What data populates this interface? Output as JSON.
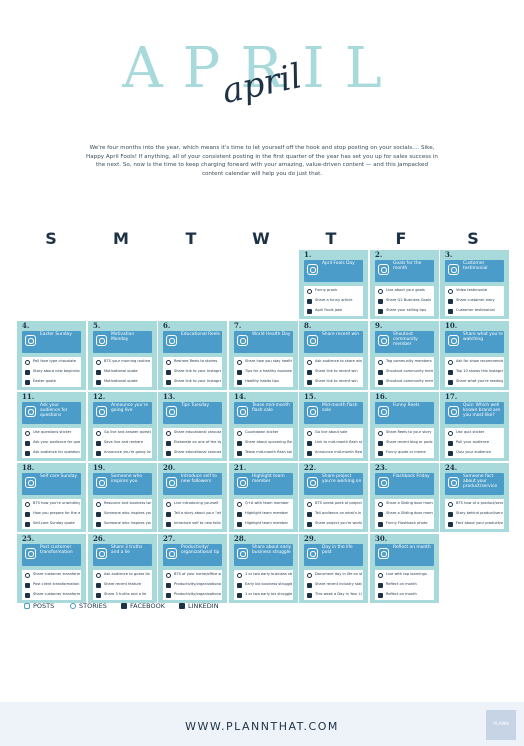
{
  "header": {
    "title": "APRIL",
    "script": "april",
    "intro": "We're four months into the year, which means it's time to let yourself off the hook and stop posting on your socials.... Sike, Happy April Fools! If anything, all of your consistent posting in the first quarter of the year has set you up for sales success in the next. So, now is the time to keep charging forward with your amazing, value-driven content — and this jampacked content calendar will help you do just that."
  },
  "weekdays": [
    "S",
    "M",
    "T",
    "W",
    "T",
    "F",
    "S"
  ],
  "days": [
    {
      "num": "1.",
      "post": "April Fools Day",
      "subs": [
        "Funny prank",
        "Share a funny article",
        "April Fools joke"
      ]
    },
    {
      "num": "2.",
      "post": "Goals for the month",
      "subs": [
        "Live about your goals",
        "Share Q2 Business Goals",
        "Share your selling tips"
      ]
    },
    {
      "num": "3.",
      "post": "Customer testimonial",
      "subs": [
        "Video testimonial",
        "Share customer story",
        "Customer testimonial"
      ]
    },
    {
      "num": "4.",
      "post": "Easter Sunday",
      "subs": [
        "Poll fave type chocolate",
        "Story about new beginnings",
        "Easter quote"
      ]
    },
    {
      "num": "5.",
      "post": "Motivation Monday",
      "subs": [
        "BTS your morning routine",
        "Motivational quote",
        "Motivational quote"
      ]
    },
    {
      "num": "6.",
      "post": "Educational Reels",
      "subs": [
        "Reshare Reels to stories",
        "Share link to your Instagram",
        "Share link to your Instagram"
      ]
    },
    {
      "num": "7.",
      "post": "World Health Day",
      "subs": [
        "Share how you stay healthy",
        "Tips for a healthy business",
        "Healthy habits tips"
      ]
    },
    {
      "num": "8.",
      "post": "Share recent win",
      "subs": [
        "Ask audience to share wins",
        "Share link to recent win",
        "Share link to recent win"
      ]
    },
    {
      "num": "9.",
      "post": "Shoutout community member",
      "subs": [
        "Tag community members to share",
        "Shoutout community member",
        "Shoutout community member"
      ]
    },
    {
      "num": "10.",
      "post": "Share what you're watching",
      "subs": [
        "Ask for show recommendations",
        "Top 10 shows this Instagram like",
        "Share what you're reading"
      ]
    },
    {
      "num": "11.",
      "post": "Ask your audience for questions",
      "subs": [
        "Use questions sticker",
        "Ask your audience for questions",
        "Ask audience for questions"
      ]
    },
    {
      "num": "12.",
      "post": "Announce you're going live",
      "subs": [
        "Go live and answer questions",
        "Save live and reshare",
        "Announce you're going live"
      ]
    },
    {
      "num": "13.",
      "post": "Tips Tuesday",
      "subs": [
        "Share educational carousel",
        "Elaborate on one of the tips",
        "Share educational carousel"
      ]
    },
    {
      "num": "14.",
      "post": "Tease mid-month flash sale",
      "subs": [
        "Countdown sticker",
        "Share about upcoming flash sale",
        "Tease mid-month flash sale"
      ]
    },
    {
      "num": "15.",
      "post": "Mid-month flash sale",
      "subs": [
        "Go live about sale",
        "Link to mid-month flash sale",
        "Announce mid-month flash sale"
      ]
    },
    {
      "num": "16.",
      "post": "Funny Reels",
      "subs": [
        "Share Reels to your story",
        "Share recent blog or podcast",
        "Funny quote or meme"
      ]
    },
    {
      "num": "17.",
      "post": "Quiz: Which well known brand are you most like?",
      "subs": [
        "Use quiz sticker",
        "Poll your audience",
        "Quiz your audience"
      ]
    },
    {
      "num": "18.",
      "post": "Self care Sunday",
      "subs": [
        "BTS how you're unwinding",
        "How you prepare for the week",
        "Self-care Sunday quote"
      ]
    },
    {
      "num": "19.",
      "post": "Someone who inspires you",
      "subs": [
        "Resource and business tweets",
        "Someone who inspires you",
        "Someone who inspires you"
      ]
    },
    {
      "num": "20.",
      "post": "Introduce self to new followers",
      "subs": [
        "Live introducing yourself",
        "Tell a story about your \"why\"",
        "Introduce self to new followers"
      ]
    },
    {
      "num": "21.",
      "post": "Highlight team member",
      "subs": [
        "Q+A with team member",
        "Highlight team member",
        "Highlight team member"
      ]
    },
    {
      "num": "22.",
      "post": "Share project you're working on",
      "subs": [
        "BTS sneak peek of project",
        "Tell audience on what's in progress",
        "Share project you're working on"
      ]
    },
    {
      "num": "23.",
      "post": "Flashback Friday",
      "subs": [
        "Share a Sliding door moment",
        "Share a Sliding door moment",
        "Funny Flashback photo"
      ]
    },
    {
      "num": "24.",
      "post": "Someone fact about your product/service",
      "subs": [
        "BTS how of a product/service",
        "Story behind product/service",
        "Fact about your product/service"
      ]
    },
    {
      "num": "25.",
      "post": "Post customer transformation",
      "subs": [
        "Share customer transformation",
        "Post client transformation",
        "Share customer transformation"
      ]
    },
    {
      "num": "26.",
      "post": "Share 3 truths and a lie",
      "subs": [
        "Ask audience to guess lie",
        "Share recent feature",
        "Share 3 truths and a lie"
      ]
    },
    {
      "num": "27.",
      "post": "Productivity/ organizational tip",
      "subs": [
        "BTS of your home/office setup",
        "Productivity/organizational tip",
        "Productivity/organizational tip"
      ]
    },
    {
      "num": "28.",
      "post": "Share about early business struggle",
      "subs": [
        "1 or two early business struggles",
        "Early biz business struggle",
        "1 or two early biz struggles"
      ]
    },
    {
      "num": "29.",
      "post": "Day in the life post",
      "subs": [
        "Document day in life on stories",
        "Share recent industry stat",
        "This week a Day in Your Life"
      ]
    },
    {
      "num": "30.",
      "post": "Reflect on month",
      "subs": [
        "Live with top learnings",
        "Reflect on month",
        "Reflect on month"
      ]
    }
  ],
  "legend": {
    "posts": "POSTS",
    "stories": "STORIES",
    "facebook": "FACEBOOK",
    "linkedin": "LINKEDIN"
  },
  "footer": {
    "url": "WWW.PLANNTHAT.COM",
    "logo": "PLANN"
  },
  "colors": {
    "accent": "#a8dadc",
    "post_blue": "#4b9cc8",
    "navy": "#1d3245",
    "footer_bg": "#eef3fa"
  }
}
